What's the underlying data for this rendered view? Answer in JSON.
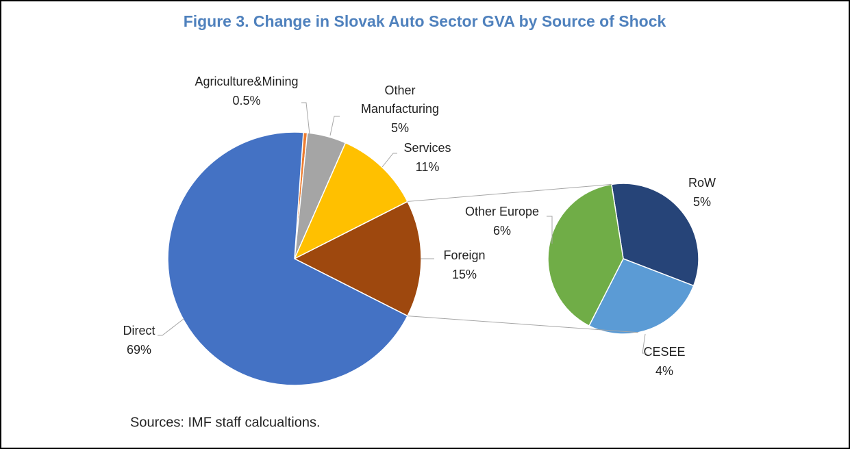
{
  "chart_data": {
    "type": "pie-of-pie",
    "title": "Figure 3. Change in Slovak Auto Sector GVA by Source of Shock",
    "categories": [
      "Agriculture&Mining",
      "Other Manufacturing",
      "Services",
      "Foreign",
      "Direct"
    ],
    "values": [
      0.5,
      5,
      11,
      15,
      69
    ],
    "value_labels": [
      "0.5%",
      "5%",
      "11%",
      "15%",
      "69%"
    ],
    "colors": [
      "#ed7d31",
      "#a5a5a5",
      "#ffc000",
      "#9e480e",
      "#4472c4"
    ],
    "breakout": {
      "categories": [
        "RoW",
        "CESEE",
        "Other Europe"
      ],
      "values": [
        5,
        4,
        6
      ],
      "value_labels": [
        "5%",
        "4%",
        "6%"
      ],
      "colors": [
        "#264478",
        "#5b9bd5",
        "#70ad47"
      ]
    },
    "source": "Sources: IMF staff calcualtions."
  }
}
